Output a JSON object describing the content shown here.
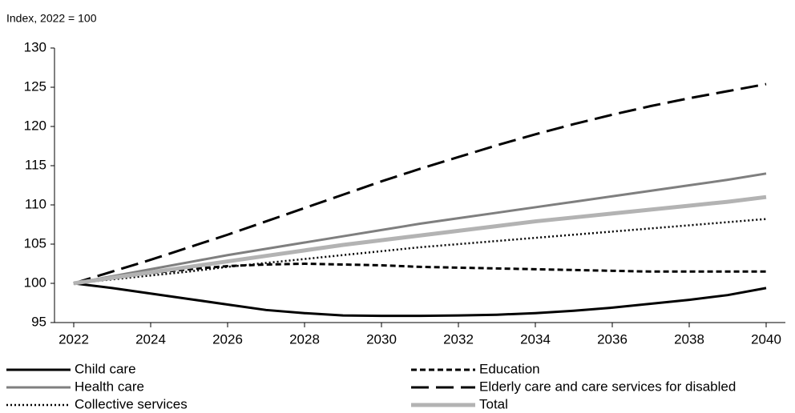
{
  "chart_data": {
    "type": "line",
    "y_label": "Index, 2022 = 100",
    "x": [
      2022,
      2023,
      2024,
      2025,
      2026,
      2027,
      2028,
      2029,
      2030,
      2031,
      2032,
      2033,
      2034,
      2035,
      2036,
      2037,
      2038,
      2039,
      2040
    ],
    "xlim": [
      2021.5,
      2040.5
    ],
    "xticks": [
      2022,
      2024,
      2026,
      2028,
      2030,
      2032,
      2034,
      2036,
      2038,
      2040
    ],
    "ylim": [
      95,
      130
    ],
    "yticks": [
      95,
      100,
      105,
      110,
      115,
      120,
      125,
      130
    ],
    "grid": false,
    "legend": "bottom",
    "series": [
      {
        "name": "Child care",
        "color": "#000000",
        "dash": "solid",
        "values": [
          100,
          99.4,
          98.7,
          98.0,
          97.3,
          96.6,
          96.2,
          95.9,
          95.85,
          95.85,
          95.9,
          96.0,
          96.2,
          96.5,
          96.9,
          97.4,
          97.9,
          98.5,
          99.4
        ]
      },
      {
        "name": "Education",
        "color": "#000000",
        "dash": "dashed",
        "values": [
          100,
          100.7,
          101.3,
          101.8,
          102.2,
          102.4,
          102.5,
          102.4,
          102.3,
          102.1,
          102.0,
          101.9,
          101.8,
          101.7,
          101.6,
          101.5,
          101.5,
          101.5,
          101.5
        ]
      },
      {
        "name": "Health care",
        "color": "#7f7f7f",
        "dash": "solid",
        "values": [
          100,
          100.9,
          101.8,
          102.7,
          103.6,
          104.4,
          105.2,
          106.0,
          106.8,
          107.6,
          108.3,
          109.0,
          109.7,
          110.4,
          111.1,
          111.8,
          112.5,
          113.2,
          114.0
        ]
      },
      {
        "name": "Elderly care and care services for disabled",
        "color": "#000000",
        "dash": "long-dash",
        "values": [
          100,
          101.5,
          103.0,
          104.6,
          106.2,
          107.9,
          109.6,
          111.3,
          113.0,
          114.6,
          116.1,
          117.6,
          119.0,
          120.3,
          121.5,
          122.6,
          123.6,
          124.5,
          125.4
        ]
      },
      {
        "name": "Collective services",
        "color": "#000000",
        "dash": "dotted",
        "values": [
          100,
          100.5,
          101.0,
          101.5,
          102.1,
          102.6,
          103.1,
          103.6,
          104.1,
          104.6,
          105.0,
          105.4,
          105.8,
          106.2,
          106.6,
          107.0,
          107.4,
          107.8,
          108.2
        ]
      },
      {
        "name": "Total",
        "color": "#b3b3b3",
        "dash": "thick",
        "values": [
          100,
          100.7,
          101.4,
          102.1,
          102.8,
          103.5,
          104.2,
          104.9,
          105.5,
          106.1,
          106.7,
          107.3,
          107.9,
          108.4,
          108.9,
          109.4,
          109.9,
          110.4,
          111.0
        ]
      }
    ]
  }
}
